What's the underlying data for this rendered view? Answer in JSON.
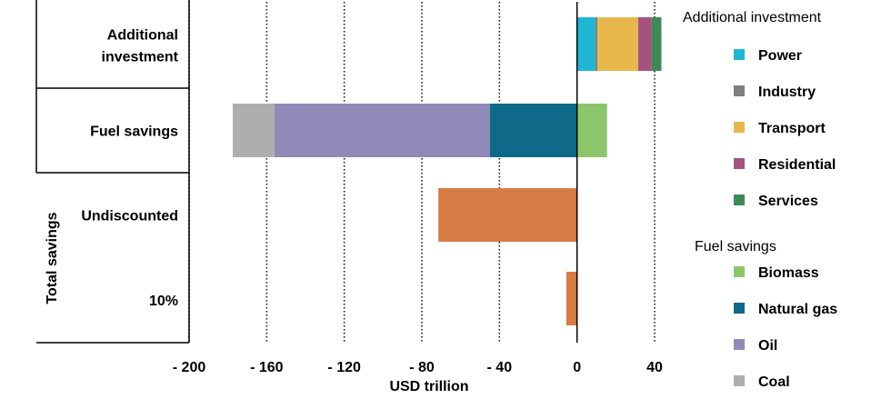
{
  "chart_data": {
    "type": "bar",
    "orientation": "horizontal",
    "stacked": true,
    "xlabel": "USD trillion",
    "xlim": [
      -200,
      40
    ],
    "x_ticks": [
      -200,
      -160,
      -120,
      -80,
      -40,
      0,
      40
    ],
    "x_tick_labels": [
      "- 200",
      "- 160",
      "- 120",
      "- 80",
      "- 40",
      "0",
      "40"
    ],
    "grid": "vertical dotted",
    "group_label": "Total savings",
    "categories": [
      {
        "label": "Additional investment",
        "lines": [
          "Additional",
          "investment"
        ]
      },
      {
        "label": "Fuel savings",
        "lines": [
          "Fuel savings"
        ]
      },
      {
        "label": "Undiscounted",
        "lines": [
          "Undiscounted"
        ]
      },
      {
        "label": "10%",
        "lines": [
          "10%"
        ]
      }
    ],
    "series": [
      {
        "name": "Power",
        "color": "#1fb6d6",
        "values": [
          9.5,
          0,
          0,
          0
        ]
      },
      {
        "name": "Industry",
        "color": "#7f7f7f",
        "values": [
          1,
          0,
          0,
          0
        ]
      },
      {
        "name": "Transport",
        "color": "#e8b84d",
        "values": [
          21,
          0,
          0,
          0
        ]
      },
      {
        "name": "Residential",
        "color": "#a5527f",
        "values": [
          7,
          0,
          0,
          0
        ]
      },
      {
        "name": "Services",
        "color": "#3d8a56",
        "values": [
          5,
          0,
          0,
          0
        ]
      },
      {
        "name": "Biomass",
        "color": "#8cc66b",
        "values": [
          0,
          15.5,
          0,
          0
        ]
      },
      {
        "name": "Natural gas",
        "color": "#0e6a88",
        "values": [
          0,
          -45,
          0,
          0
        ]
      },
      {
        "name": "Oil",
        "color": "#9189b7",
        "values": [
          0,
          -111,
          0,
          0
        ]
      },
      {
        "name": "Coal",
        "color": "#aeaeae",
        "values": [
          0,
          -21.5,
          0,
          0
        ]
      },
      {
        "name": "Total savings",
        "color": "#d87c46",
        "values": [
          0,
          0,
          -71.5,
          -5.5
        ]
      }
    ],
    "legend": {
      "placement": "right",
      "groups": [
        {
          "title": "Additional investment",
          "items": [
            "Power",
            "Industry",
            "Transport",
            "Residential",
            "Services"
          ]
        },
        {
          "title": "Fuel savings",
          "items": [
            "Biomass",
            "Natural gas",
            "Oil",
            "Coal"
          ]
        }
      ]
    }
  }
}
